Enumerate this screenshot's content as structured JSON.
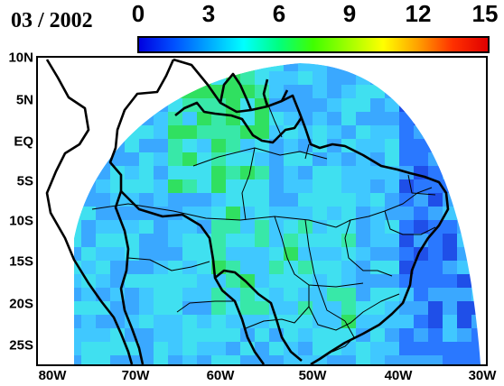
{
  "title": "03 / 2002",
  "colorbar": {
    "ticks": [
      "0",
      "3",
      "6",
      "9",
      "12",
      "15"
    ],
    "min": 0,
    "max": 15,
    "colors": [
      "#0000e0",
      "#0050ff",
      "#00a8ff",
      "#00ffff",
      "#00ff80",
      "#40ff00",
      "#a0ff00",
      "#ffff00",
      "#ffa000",
      "#ff3000",
      "#e00000"
    ]
  },
  "lat_labels": [
    "10N",
    "5N",
    "EQ",
    "5S",
    "10S",
    "15S",
    "20S",
    "25S"
  ],
  "lon_labels": [
    "80W",
    "70W",
    "60W",
    "50W",
    "40W",
    "30W"
  ],
  "colors": {
    "frame": "#000000",
    "background": "#ffffff"
  }
}
